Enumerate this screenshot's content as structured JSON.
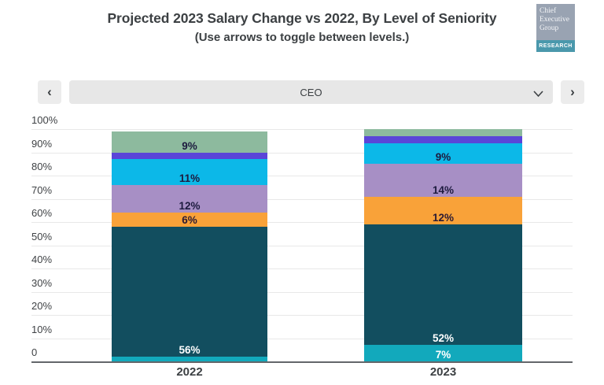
{
  "header": {
    "title": "Projected 2023 Salary Change vs 2022, By Level of Seniority",
    "subtitle": "(Use arrows to toggle between levels.)"
  },
  "logo": {
    "line1": "Chief",
    "line2": "Executive",
    "line3": "Group",
    "research": "RESEARCH",
    "box_color": "#99a3b2",
    "strip_color": "#4a98ac"
  },
  "toolbar": {
    "prev_icon": "‹",
    "next_icon": "›",
    "selected_level": "CEO"
  },
  "chart_data": {
    "type": "stacked-bar",
    "categories": [
      "2022",
      "2023"
    ],
    "series": [
      {
        "name": "bright-teal-bottom",
        "color": "#12a9bc",
        "values": [
          2,
          7
        ],
        "labels": [
          "",
          "7%"
        ],
        "label_color": "#ffffff"
      },
      {
        "name": "dark-teal",
        "color": "#124e5f",
        "values": [
          56,
          52
        ],
        "labels": [
          "56%",
          "52%"
        ],
        "label_color": "#ffffff"
      },
      {
        "name": "orange",
        "color": "#f9a239",
        "values": [
          6,
          12
        ],
        "labels": [
          "6%",
          "12%"
        ],
        "label_color": "#2b1a33"
      },
      {
        "name": "lavender",
        "color": "#a78fc5",
        "values": [
          12,
          14
        ],
        "labels": [
          "12%",
          "14%"
        ],
        "label_color": "#1d1b3f"
      },
      {
        "name": "cyan",
        "color": "#0cb8e8",
        "values": [
          11,
          9
        ],
        "labels": [
          "11%",
          "9%"
        ],
        "label_color": "#1d1b3f"
      },
      {
        "name": "violet",
        "color": "#5a45d8",
        "values": [
          3,
          3
        ],
        "labels": [
          "",
          ""
        ],
        "label_color": "#1d1b3f"
      },
      {
        "name": "sage-green",
        "color": "#8dba9e",
        "values": [
          9,
          3
        ],
        "labels": [
          "9%",
          ""
        ],
        "label_color": "#1d1b3f"
      }
    ],
    "yticks": [
      {
        "value": 0,
        "label": "0"
      },
      {
        "value": 10,
        "label": "10%"
      },
      {
        "value": 20,
        "label": "20%"
      },
      {
        "value": 30,
        "label": "30%"
      },
      {
        "value": 40,
        "label": "40%"
      },
      {
        "value": 50,
        "label": "50%"
      },
      {
        "value": 60,
        "label": "60%"
      },
      {
        "value": 70,
        "label": "70%"
      },
      {
        "value": 80,
        "label": "80%"
      },
      {
        "value": 90,
        "label": "90%"
      },
      {
        "value": 100,
        "label": "100%"
      }
    ],
    "ylim": [
      0,
      100
    ],
    "grid": true,
    "legend": false
  }
}
